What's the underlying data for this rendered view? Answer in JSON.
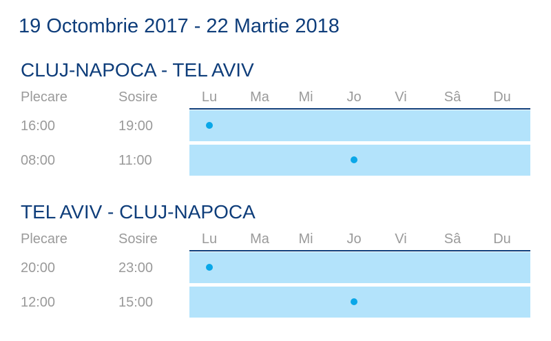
{
  "period": "19 Octombrie 2017 - 22 Martie 2018",
  "columns": {
    "departure": "Plecare",
    "arrival": "Sosire"
  },
  "days": [
    "Lu",
    "Ma",
    "Mi",
    "Jo",
    "Vi",
    "Sâ",
    "Du"
  ],
  "routes": [
    {
      "title": "CLUJ-NAPOCA - TEL AVIV",
      "flights": [
        {
          "departure": "16:00",
          "arrival": "19:00",
          "day": "Lu"
        },
        {
          "departure": "08:00",
          "arrival": "11:00",
          "day": "Jo"
        }
      ]
    },
    {
      "title": "TEL AVIV - CLUJ-NAPOCA",
      "flights": [
        {
          "departure": "20:00",
          "arrival": "23:00",
          "day": "Lu"
        },
        {
          "departure": "12:00",
          "arrival": "15:00",
          "day": "Jo"
        }
      ]
    }
  ],
  "colors": {
    "title": "#0e3d7a",
    "text_muted": "#9a9a9a",
    "row_fill": "#b3e3fb",
    "dot": "#0aa7e8"
  }
}
